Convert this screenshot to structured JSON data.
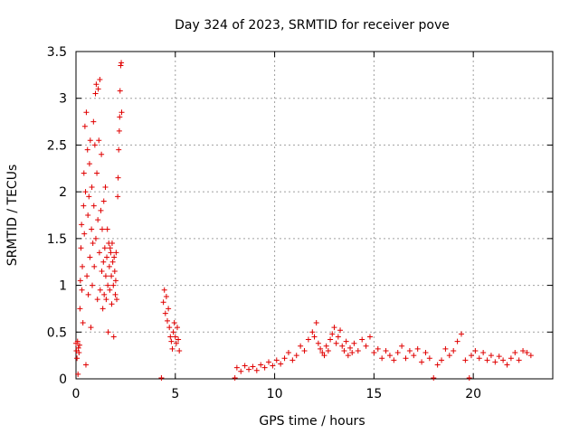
{
  "chart_data": {
    "type": "scatter",
    "title": "Day 324 of 2023, SRMTID for receiver pove",
    "xlabel": "GPS time / hours",
    "ylabel": "SRMTID / TECUs",
    "xlim": [
      0,
      24
    ],
    "ylim": [
      0,
      3.5
    ],
    "x_ticks": [
      0,
      5,
      10,
      15,
      20
    ],
    "x_tick_labels": [
      "0",
      "5",
      "10",
      "15",
      "20"
    ],
    "y_ticks": [
      0,
      0.5,
      1,
      1.5,
      2,
      2.5,
      3,
      3.5
    ],
    "y_tick_labels": [
      "0",
      "0.5",
      "1",
      "1.5",
      "2",
      "2.5",
      "3",
      "3.5"
    ],
    "grid": true,
    "marker": "plus",
    "color": "#e00000",
    "series": [
      {
        "name": "SRMTID",
        "points": [
          [
            0.0,
            0.38
          ],
          [
            0.02,
            0.3
          ],
          [
            0.05,
            0.22
          ],
          [
            0.08,
            0.4
          ],
          [
            0.1,
            0.05
          ],
          [
            0.12,
            0.33
          ],
          [
            0.15,
            0.28
          ],
          [
            0.18,
            0.36
          ],
          [
            0.2,
            0.75
          ],
          [
            0.22,
            1.05
          ],
          [
            0.25,
            1.4
          ],
          [
            0.28,
            1.65
          ],
          [
            0.3,
            0.95
          ],
          [
            0.32,
            1.2
          ],
          [
            0.35,
            0.6
          ],
          [
            0.38,
            1.85
          ],
          [
            0.4,
            2.2
          ],
          [
            0.42,
            1.55
          ],
          [
            0.45,
            2.7
          ],
          [
            0.48,
            2.0
          ],
          [
            0.5,
            0.15
          ],
          [
            0.52,
            2.85
          ],
          [
            0.55,
            1.1
          ],
          [
            0.58,
            2.45
          ],
          [
            0.6,
            1.75
          ],
          [
            0.62,
            0.9
          ],
          [
            0.65,
            1.95
          ],
          [
            0.68,
            2.3
          ],
          [
            0.7,
            1.3
          ],
          [
            0.72,
            2.55
          ],
          [
            0.75,
            0.55
          ],
          [
            0.78,
            1.6
          ],
          [
            0.8,
            2.05
          ],
          [
            0.82,
            1.0
          ],
          [
            0.85,
            1.45
          ],
          [
            0.88,
            2.75
          ],
          [
            0.9,
            1.85
          ],
          [
            0.92,
            1.2
          ],
          [
            0.95,
            2.5
          ],
          [
            0.98,
            3.05
          ],
          [
            1.0,
            1.5
          ],
          [
            1.02,
            3.15
          ],
          [
            1.05,
            2.2
          ],
          [
            1.08,
            0.85
          ],
          [
            1.1,
            1.7
          ],
          [
            1.12,
            3.1
          ],
          [
            1.15,
            2.55
          ],
          [
            1.18,
            1.35
          ],
          [
            1.2,
            3.2
          ],
          [
            1.22,
            0.95
          ],
          [
            1.25,
            1.8
          ],
          [
            1.28,
            2.4
          ],
          [
            1.3,
            1.15
          ],
          [
            1.32,
            1.6
          ],
          [
            1.35,
            0.75
          ],
          [
            1.38,
            1.25
          ],
          [
            1.4,
            1.9
          ],
          [
            1.42,
            0.9
          ],
          [
            1.45,
            1.4
          ],
          [
            1.48,
            2.05
          ],
          [
            1.5,
            1.1
          ],
          [
            1.52,
            0.85
          ],
          [
            1.55,
            1.3
          ],
          [
            1.58,
            1.6
          ],
          [
            1.6,
            1.0
          ],
          [
            1.62,
            0.5
          ],
          [
            1.65,
            1.45
          ],
          [
            1.68,
            1.2
          ],
          [
            1.7,
            0.95
          ],
          [
            1.72,
            1.4
          ],
          [
            1.75,
            1.35
          ],
          [
            1.78,
            1.1
          ],
          [
            1.8,
            0.8
          ],
          [
            1.82,
            1.45
          ],
          [
            1.85,
            1.25
          ],
          [
            1.88,
            1.0
          ],
          [
            1.9,
            0.45
          ],
          [
            1.92,
            1.3
          ],
          [
            1.95,
            1.15
          ],
          [
            1.98,
            0.9
          ],
          [
            2.0,
            1.05
          ],
          [
            2.02,
            1.35
          ],
          [
            2.05,
            0.85
          ],
          [
            2.1,
            1.95
          ],
          [
            2.12,
            2.15
          ],
          [
            2.15,
            2.45
          ],
          [
            2.18,
            2.65
          ],
          [
            2.2,
            2.8
          ],
          [
            2.22,
            3.08
          ],
          [
            2.25,
            3.35
          ],
          [
            2.28,
            3.38
          ],
          [
            2.3,
            2.85
          ],
          [
            4.3,
            0.01
          ],
          [
            4.4,
            0.82
          ],
          [
            4.45,
            0.95
          ],
          [
            4.5,
            0.7
          ],
          [
            4.55,
            0.88
          ],
          [
            4.6,
            0.62
          ],
          [
            4.65,
            0.75
          ],
          [
            4.7,
            0.55
          ],
          [
            4.75,
            0.45
          ],
          [
            4.8,
            0.4
          ],
          [
            4.85,
            0.32
          ],
          [
            4.9,
            0.5
          ],
          [
            4.95,
            0.6
          ],
          [
            5.0,
            0.45
          ],
          [
            5.05,
            0.38
          ],
          [
            5.1,
            0.55
          ],
          [
            5.15,
            0.42
          ],
          [
            5.2,
            0.3
          ],
          [
            8.0,
            0.01
          ],
          [
            8.1,
            0.12
          ],
          [
            8.3,
            0.08
          ],
          [
            8.5,
            0.14
          ],
          [
            8.7,
            0.1
          ],
          [
            8.9,
            0.13
          ],
          [
            9.1,
            0.09
          ],
          [
            9.3,
            0.15
          ],
          [
            9.5,
            0.12
          ],
          [
            9.7,
            0.18
          ],
          [
            9.9,
            0.14
          ],
          [
            10.1,
            0.2
          ],
          [
            10.3,
            0.16
          ],
          [
            10.5,
            0.22
          ],
          [
            10.7,
            0.28
          ],
          [
            10.9,
            0.2
          ],
          [
            11.1,
            0.25
          ],
          [
            11.3,
            0.35
          ],
          [
            11.5,
            0.3
          ],
          [
            11.7,
            0.42
          ],
          [
            11.9,
            0.5
          ],
          [
            12.0,
            0.45
          ],
          [
            12.1,
            0.6
          ],
          [
            12.2,
            0.38
          ],
          [
            12.3,
            0.32
          ],
          [
            12.4,
            0.28
          ],
          [
            12.5,
            0.25
          ],
          [
            12.6,
            0.35
          ],
          [
            12.7,
            0.3
          ],
          [
            12.8,
            0.42
          ],
          [
            12.9,
            0.48
          ],
          [
            13.0,
            0.55
          ],
          [
            13.1,
            0.38
          ],
          [
            13.2,
            0.45
          ],
          [
            13.3,
            0.52
          ],
          [
            13.4,
            0.35
          ],
          [
            13.5,
            0.3
          ],
          [
            13.6,
            0.4
          ],
          [
            13.7,
            0.25
          ],
          [
            13.8,
            0.33
          ],
          [
            13.9,
            0.28
          ],
          [
            14.0,
            0.38
          ],
          [
            14.2,
            0.3
          ],
          [
            14.4,
            0.42
          ],
          [
            14.6,
            0.35
          ],
          [
            14.8,
            0.45
          ],
          [
            15.0,
            0.28
          ],
          [
            15.2,
            0.32
          ],
          [
            15.4,
            0.22
          ],
          [
            15.6,
            0.3
          ],
          [
            15.8,
            0.25
          ],
          [
            16.0,
            0.2
          ],
          [
            16.2,
            0.28
          ],
          [
            16.4,
            0.35
          ],
          [
            16.6,
            0.22
          ],
          [
            16.8,
            0.3
          ],
          [
            17.0,
            0.25
          ],
          [
            17.2,
            0.32
          ],
          [
            17.4,
            0.18
          ],
          [
            17.6,
            0.28
          ],
          [
            17.8,
            0.22
          ],
          [
            18.0,
            0.01
          ],
          [
            18.2,
            0.15
          ],
          [
            18.4,
            0.2
          ],
          [
            18.6,
            0.32
          ],
          [
            18.8,
            0.25
          ],
          [
            19.0,
            0.3
          ],
          [
            19.2,
            0.4
          ],
          [
            19.4,
            0.48
          ],
          [
            19.6,
            0.2
          ],
          [
            19.8,
            0.01
          ],
          [
            19.9,
            0.25
          ],
          [
            20.1,
            0.3
          ],
          [
            20.3,
            0.22
          ],
          [
            20.5,
            0.28
          ],
          [
            20.7,
            0.2
          ],
          [
            20.9,
            0.25
          ],
          [
            21.1,
            0.18
          ],
          [
            21.3,
            0.24
          ],
          [
            21.5,
            0.2
          ],
          [
            21.7,
            0.15
          ],
          [
            21.9,
            0.22
          ],
          [
            22.1,
            0.28
          ],
          [
            22.3,
            0.2
          ],
          [
            22.5,
            0.3
          ],
          [
            22.7,
            0.28
          ],
          [
            22.9,
            0.25
          ]
        ]
      }
    ]
  }
}
